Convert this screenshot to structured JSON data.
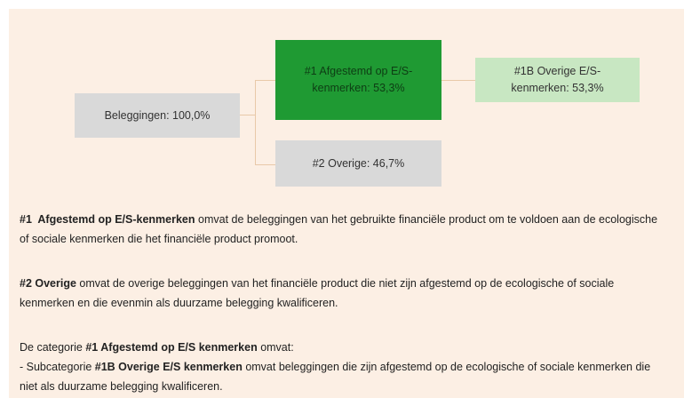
{
  "nodes": [
    {
      "label": "Beleggingen: 100,0%"
    },
    {
      "label": "#1 Afgestemd op E/S-kenmerken: 53,3%"
    },
    {
      "label": "#1B Overige E/S-kenmerken: 53,3%"
    },
    {
      "label": "#2 Overige: 46,7%"
    }
  ],
  "paragraphs": [
    [
      {
        "text": "#1  Afgestemd op E/S-kenmerken",
        "bold": true
      },
      {
        "text": " omvat de beleggingen van het gebruikte financiële product om te voldoen aan de ecologische of sociale kenmerken die het financiële product promoot.",
        "bold": false
      }
    ],
    [
      {
        "text": "#2 Overige",
        "bold": true
      },
      {
        "text": " omvat de overige beleggingen van het financiële product die niet zijn afgestemd op de ecologische of sociale kenmerken en die evenmin als duurzame belegging kwalificeren.",
        "bold": false
      }
    ],
    [
      {
        "text": "De categorie ",
        "bold": false
      },
      {
        "text": "#1 Afgestemd op E/S kenmerken",
        "bold": true
      },
      {
        "text": " omvat:",
        "bold": false
      }
    ],
    [
      {
        "text": "- Subcategorie ",
        "bold": false
      },
      {
        "text": "#1B Overige E/S kenmerken",
        "bold": true
      },
      {
        "text": " omvat beleggingen die zijn afgestemd op de ecologische of sociale kenmerken die niet als duurzame belegging kwalificeren.",
        "bold": false
      }
    ]
  ]
}
